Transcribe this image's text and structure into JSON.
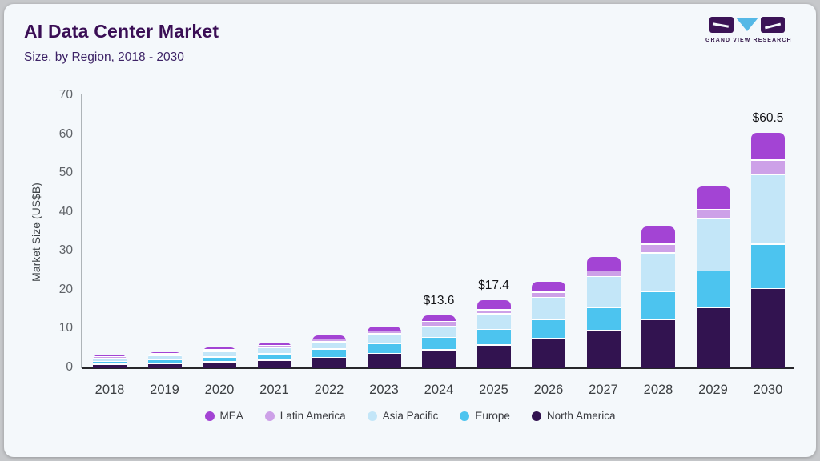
{
  "logo": {
    "caption": "GRAND VIEW RESEARCH"
  },
  "chart_data": {
    "type": "bar",
    "variant": "stacked",
    "title": "AI Data Center Market",
    "subtitle": "Size, by Region, 2018 - 2030",
    "ylabel": "Market Size (US$B)",
    "ylim": [
      0,
      70
    ],
    "yticks": [
      0,
      10,
      20,
      30,
      40,
      50,
      60,
      70
    ],
    "grid": false,
    "legend_position": "bottom",
    "categories": [
      "2018",
      "2019",
      "2020",
      "2021",
      "2022",
      "2023",
      "2024",
      "2025",
      "2026",
      "2027",
      "2028",
      "2029",
      "2030"
    ],
    "series": [
      {
        "name": "North America",
        "color": "#321350",
        "values": [
          1.3,
          1.6,
          1.9,
          2.4,
          3.1,
          4.1,
          5.0,
          6.3,
          8.0,
          10.0,
          12.7,
          15.9,
          20.8
        ]
      },
      {
        "name": "Europe",
        "color": "#4cc4ef",
        "values": [
          0.8,
          1.0,
          1.3,
          1.6,
          2.1,
          2.6,
          3.2,
          3.9,
          4.7,
          5.9,
          7.2,
          9.3,
          11.3
        ]
      },
      {
        "name": "Asia Pacific",
        "color": "#c3e6f8",
        "values": [
          0.75,
          0.95,
          1.25,
          1.6,
          1.9,
          2.4,
          2.8,
          4.0,
          5.8,
          7.9,
          10.0,
          13.4,
          17.9
        ]
      },
      {
        "name": "Latin America",
        "color": "#cda1e8",
        "values": [
          0.15,
          0.2,
          0.25,
          0.3,
          0.4,
          0.5,
          1.1,
          0.8,
          1.1,
          1.2,
          2.0,
          2.3,
          3.5
        ]
      },
      {
        "name": "MEA",
        "color": "#a344d4",
        "values": [
          0.4,
          0.45,
          0.6,
          0.7,
          0.9,
          1.2,
          1.5,
          2.4,
          2.6,
          3.6,
          4.5,
          5.9,
          7.0
        ]
      }
    ],
    "legend_order": [
      "MEA",
      "Latin America",
      "Asia Pacific",
      "Europe",
      "North America"
    ],
    "annotations": [
      {
        "category": "2024",
        "text": "$13.6"
      },
      {
        "category": "2025",
        "text": "$17.4"
      },
      {
        "category": "2030",
        "text": "$60.5"
      }
    ]
  }
}
